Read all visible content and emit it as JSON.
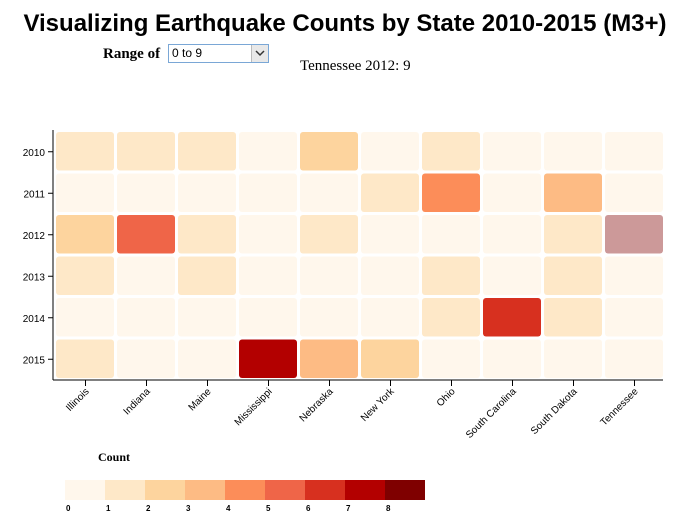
{
  "title": "Visualizing Earthquake Counts by State 2010-2015 (M3+)",
  "controls": {
    "range_label": "Range of",
    "range_selected": "0 to 9",
    "hover_text": "Tennessee 2012: 9"
  },
  "legend": {
    "title": "Count",
    "labels": [
      "0",
      "1",
      "2",
      "3",
      "4",
      "5",
      "6",
      "7",
      "8"
    ],
    "colors": [
      "#fff7ec",
      "#fee8c8",
      "#fdd49e",
      "#fdbb84",
      "#fc8d59",
      "#ef6548",
      "#d7301f",
      "#b30000",
      "#7f0000"
    ]
  },
  "hover_color": "#cc9999",
  "chart_data": {
    "type": "heatmap",
    "title": "Visualizing Earthquake Counts by State 2010-2015 (M3+)",
    "x": [
      "Illinois",
      "Indiana",
      "Maine",
      "Mississippi",
      "Nebraska",
      "New York",
      "Ohio",
      "South Carolina",
      "South Dakota",
      "Tennessee"
    ],
    "y": [
      "2010",
      "2011",
      "2012",
      "2013",
      "2014",
      "2015"
    ],
    "values": [
      [
        1,
        1,
        1,
        0,
        2,
        0,
        1,
        0,
        0,
        0
      ],
      [
        0,
        0,
        0,
        0,
        0,
        1,
        4,
        0,
        3,
        0
      ],
      [
        2,
        5,
        1,
        0,
        1,
        0,
        0,
        0,
        1,
        9
      ],
      [
        1,
        0,
        1,
        0,
        0,
        0,
        1,
        0,
        1,
        0
      ],
      [
        0,
        0,
        0,
        0,
        0,
        0,
        1,
        6,
        1,
        0
      ],
      [
        1,
        0,
        0,
        7,
        3,
        2,
        0,
        0,
        0,
        0
      ]
    ],
    "highlighted": {
      "x": "Tennessee",
      "y": "2012"
    },
    "colorscale_range": [
      0,
      9
    ]
  }
}
